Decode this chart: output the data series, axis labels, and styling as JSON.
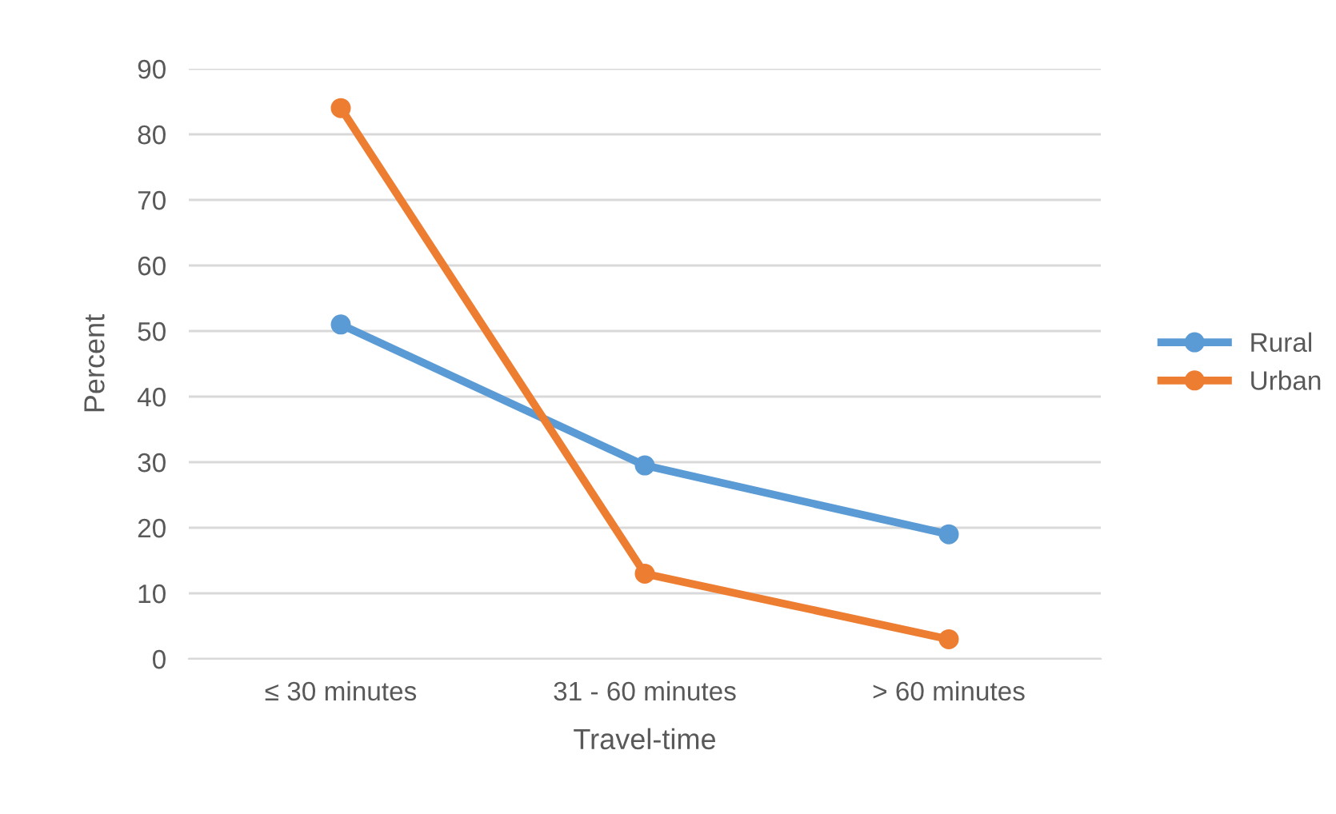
{
  "chart_data": {
    "type": "line",
    "xlabel": "Travel-time",
    "ylabel": "Percent",
    "categories": [
      "≤ 30 minutes",
      "31 - 60 minutes",
      "> 60 minutes"
    ],
    "series": [
      {
        "name": "Rural",
        "color": "#5b9bd5",
        "values": [
          51,
          29.5,
          19
        ]
      },
      {
        "name": "Urban",
        "color": "#ed7d31",
        "values": [
          84,
          13,
          3
        ]
      }
    ],
    "ylim": [
      0,
      90
    ],
    "yticks": [
      0,
      10,
      20,
      30,
      40,
      50,
      60,
      70,
      80,
      90
    ],
    "grid": "y",
    "legend": "right",
    "marker": "circle",
    "line_style": "solid"
  }
}
